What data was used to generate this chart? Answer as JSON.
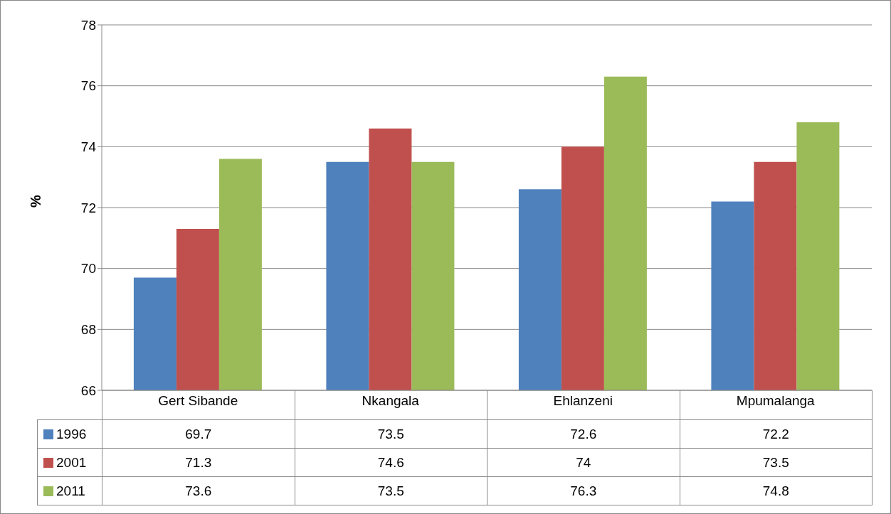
{
  "chart_data": {
    "type": "bar",
    "ylabel": "%",
    "categories": [
      "Gert Sibande",
      "Nkangala",
      "Ehlanzeni",
      "Mpumalanga"
    ],
    "series": [
      {
        "name": "1996",
        "color": "#4f81bd",
        "values": [
          69.7,
          73.5,
          72.6,
          72.2
        ]
      },
      {
        "name": "2001",
        "color": "#c0504d",
        "values": [
          71.3,
          74.6,
          74,
          73.5
        ]
      },
      {
        "name": "2011",
        "color": "#9bbb59",
        "values": [
          73.6,
          73.5,
          76.3,
          74.8
        ]
      }
    ],
    "ylim": [
      66,
      78
    ],
    "yticks": [
      66,
      68,
      70,
      72,
      74,
      76,
      78
    ],
    "grid": "y",
    "legend": "bottom",
    "data_labels": true
  }
}
